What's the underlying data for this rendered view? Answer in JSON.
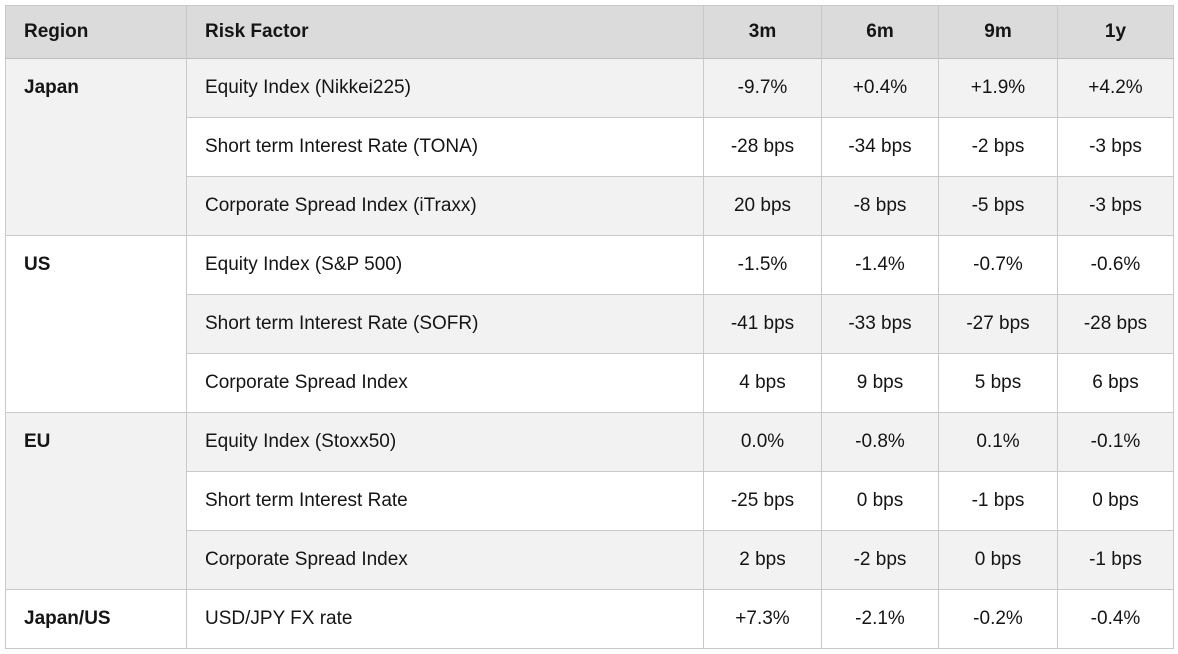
{
  "colors": {
    "header_bg": "#dbdbdb",
    "band_bg": "#f2f2f2",
    "plain_bg": "#ffffff",
    "border": "#c9c9c9",
    "text": "#151515"
  },
  "table": {
    "columns": [
      "Region",
      "Risk Factor",
      "3m",
      "6m",
      "9m",
      "1y"
    ],
    "groups": [
      {
        "region": "Japan",
        "rows": [
          {
            "risk_factor": "Equity Index (Nikkei225)",
            "values": [
              "-9.7%",
              "+0.4%",
              "+1.9%",
              "+4.2%"
            ]
          },
          {
            "risk_factor": "Short term Interest Rate (TONA)",
            "values": [
              "-28 bps",
              "-34 bps",
              "-2 bps",
              "-3 bps"
            ]
          },
          {
            "risk_factor": "Corporate Spread Index (iTraxx)",
            "values": [
              "20 bps",
              "-8 bps",
              "-5 bps",
              "-3 bps"
            ]
          }
        ]
      },
      {
        "region": "US",
        "rows": [
          {
            "risk_factor": "Equity Index (S&P 500)",
            "values": [
              "-1.5%",
              "-1.4%",
              "-0.7%",
              "-0.6%"
            ]
          },
          {
            "risk_factor": "Short term Interest Rate (SOFR)",
            "values": [
              "-41 bps",
              "-33 bps",
              "-27 bps",
              "-28 bps"
            ]
          },
          {
            "risk_factor": "Corporate Spread Index",
            "values": [
              "4 bps",
              "9 bps",
              "5 bps",
              "6 bps"
            ]
          }
        ]
      },
      {
        "region": "EU",
        "rows": [
          {
            "risk_factor": "Equity Index (Stoxx50)",
            "values": [
              "0.0%",
              "-0.8%",
              "0.1%",
              "-0.1%"
            ]
          },
          {
            "risk_factor": "Short term Interest Rate",
            "values": [
              "-25 bps",
              "0 bps",
              "-1 bps",
              "0 bps"
            ]
          },
          {
            "risk_factor": "Corporate Spread Index",
            "values": [
              "2 bps",
              "-2 bps",
              "0 bps",
              "-1 bps"
            ]
          }
        ]
      },
      {
        "region": "Japan/US",
        "rows": [
          {
            "risk_factor": "USD/JPY FX rate",
            "values": [
              "+7.3%",
              "-2.1%",
              "-0.2%",
              "-0.4%"
            ]
          }
        ]
      }
    ]
  },
  "chart_data": {
    "type": "table",
    "columns": [
      "Region",
      "Risk Factor",
      "3m",
      "6m",
      "9m",
      "1y"
    ],
    "rows": [
      [
        "Japan",
        "Equity Index (Nikkei225)",
        "-9.7%",
        "+0.4%",
        "+1.9%",
        "+4.2%"
      ],
      [
        "Japan",
        "Short term Interest Rate (TONA)",
        "-28 bps",
        "-34 bps",
        "-2 bps",
        "-3 bps"
      ],
      [
        "Japan",
        "Corporate Spread Index (iTraxx)",
        "20 bps",
        "-8 bps",
        "-5 bps",
        "-3 bps"
      ],
      [
        "US",
        "Equity Index (S&P 500)",
        "-1.5%",
        "-1.4%",
        "-0.7%",
        "-0.6%"
      ],
      [
        "US",
        "Short term Interest Rate (SOFR)",
        "-41 bps",
        "-33 bps",
        "-27 bps",
        "-28 bps"
      ],
      [
        "US",
        "Corporate Spread Index",
        "4 bps",
        "9 bps",
        "5 bps",
        "6 bps"
      ],
      [
        "EU",
        "Equity Index (Stoxx50)",
        "0.0%",
        "-0.8%",
        "0.1%",
        "-0.1%"
      ],
      [
        "EU",
        "Short term Interest Rate",
        "-25 bps",
        "0 bps",
        "-1 bps",
        "0 bps"
      ],
      [
        "EU",
        "Corporate Spread Index",
        "2 bps",
        "-2 bps",
        "0 bps",
        "-1 bps"
      ],
      [
        "Japan/US",
        "USD/JPY FX rate",
        "+7.3%",
        "-2.1%",
        "-0.2%",
        "-0.4%"
      ]
    ]
  }
}
